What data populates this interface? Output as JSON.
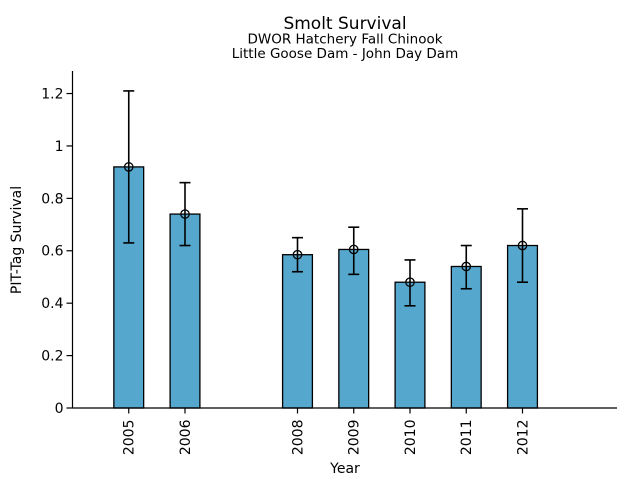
{
  "chart_data": {
    "type": "bar",
    "title": "Smolt Survival",
    "subtitle1": "DWOR Hatchery Fall Chinook",
    "subtitle2": "Little Goose Dam - John Day Dam",
    "xlabel": "Year",
    "ylabel": "PIT-Tag Survival",
    "categories": [
      "2005",
      "2006",
      "2008",
      "2009",
      "2010",
      "2011",
      "2012"
    ],
    "x_values": [
      2005,
      2006,
      2008,
      2009,
      2010,
      2011,
      2012
    ],
    "values": [
      0.92,
      0.74,
      0.585,
      0.605,
      0.48,
      0.54,
      0.62
    ],
    "error_low": [
      0.63,
      0.62,
      0.52,
      0.51,
      0.39,
      0.455,
      0.48
    ],
    "error_high": [
      1.21,
      0.86,
      0.65,
      0.69,
      0.565,
      0.62,
      0.76
    ],
    "yticks": [
      0,
      0.2,
      0.4,
      0.6,
      0.8,
      1,
      1.2
    ],
    "ytick_labels": [
      "0",
      "0.2",
      "0.4",
      "0.6",
      "0.8",
      "1",
      "1.2"
    ],
    "ylim": [
      0,
      1.286
    ],
    "xlim": [
      2004.0,
      2013.68
    ],
    "bar_width_years": 0.53,
    "grid": false,
    "legend": null,
    "marker": "open-circle",
    "colors": {
      "bar_fill": "#56A7CE",
      "bar_edge": "#000000",
      "error_bar": "#000000",
      "axis": "#000000",
      "text": "#000000",
      "background": "#FFFFFF"
    }
  }
}
